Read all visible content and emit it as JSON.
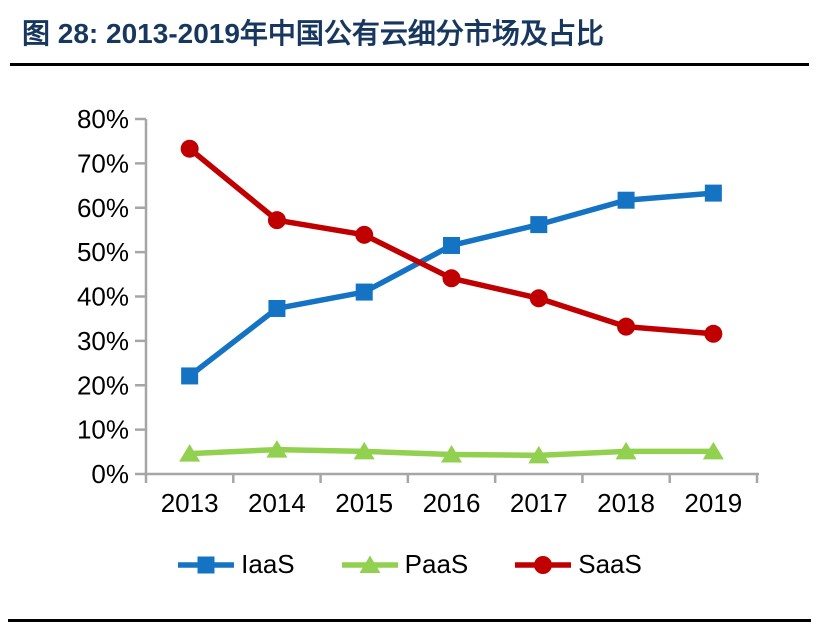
{
  "header": {
    "title": "图 28: 2013-2019年中国公有云细分市场及占比"
  },
  "chart_data": {
    "type": "line",
    "title": "2013-2019年中国公有云细分市场及占比",
    "categories": [
      "2013",
      "2014",
      "2015",
      "2016",
      "2017",
      "2018",
      "2019"
    ],
    "series": [
      {
        "name": "IaaS",
        "marker": "square",
        "color": "#1573C4",
        "values": [
          22.1,
          37.3,
          41.0,
          51.5,
          56.2,
          61.7,
          63.3
        ]
      },
      {
        "name": "PaaS",
        "marker": "triangle",
        "color": "#92D050",
        "values": [
          4.6,
          5.5,
          5.1,
          4.4,
          4.2,
          5.1,
          5.1
        ]
      },
      {
        "name": "SaaS",
        "marker": "circle",
        "color": "#C00000",
        "values": [
          73.3,
          57.2,
          53.9,
          44.1,
          39.6,
          33.2,
          31.6
        ]
      }
    ],
    "xlabel": "",
    "ylabel": "",
    "ylim": [
      0,
      80
    ],
    "ytick_step": 10,
    "ytick_format": "percent",
    "grid": false,
    "legend_position": "bottom",
    "axis_color": "#A6A6A6",
    "text_color": "#000000"
  }
}
